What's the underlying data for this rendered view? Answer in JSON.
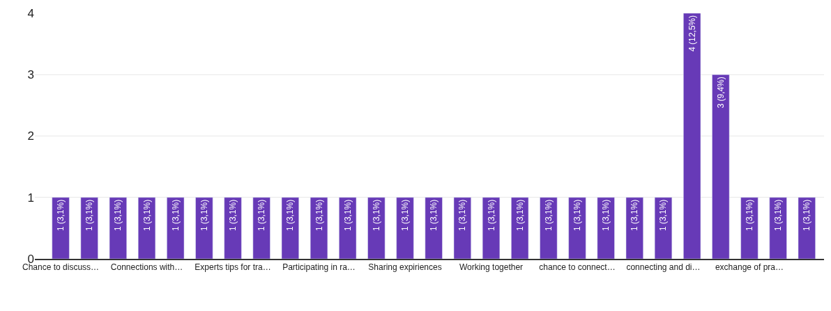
{
  "chart_data": {
    "type": "bar",
    "categories": [
      "Chance to discuss…",
      null,
      null,
      "Connections with…",
      null,
      null,
      "Experts tips for tra…",
      null,
      null,
      "Participating in ra…",
      null,
      null,
      "Sharing expiriences",
      null,
      null,
      "Working together",
      null,
      null,
      "chance to connect…",
      null,
      null,
      "connecting and di…",
      null,
      null,
      "exchange of pra…",
      null,
      null
    ],
    "values": [
      1,
      1,
      1,
      1,
      1,
      1,
      1,
      1,
      1,
      1,
      1,
      1,
      1,
      1,
      1,
      1,
      1,
      1,
      1,
      1,
      1,
      1,
      4,
      3,
      1,
      1,
      1
    ],
    "value_labels": [
      "1 (3,1%)",
      "1 (3,1%)",
      "1 (3,1%)",
      "1 (3,1%)",
      "1 (3,1%)",
      "1 (3,1%)",
      "1 (3,1%)",
      "1 (3,1%)",
      "1 (3,1%)",
      "1 (3,1%)",
      "1 (3,1%)",
      "1 (3,1%)",
      "1 (3,1%)",
      "1 (3,1%)",
      "1 (3,1%)",
      "1 (3,1%)",
      "1 (3,1%)",
      "1 (3,1%)",
      "1 (3,1%)",
      "1 (3,1%)",
      "1 (3,1%)",
      "1 (3,1%)",
      "4 (12,5%)",
      "3 (9,4%)",
      "1 (3,1%)",
      "1 (3,1%)",
      "1 (3,1%)"
    ],
    "color": "#673ab7",
    "ylim": [
      0,
      4
    ],
    "yticks": [
      0,
      1,
      2,
      3,
      4
    ],
    "grid": "y",
    "legend": false
  }
}
